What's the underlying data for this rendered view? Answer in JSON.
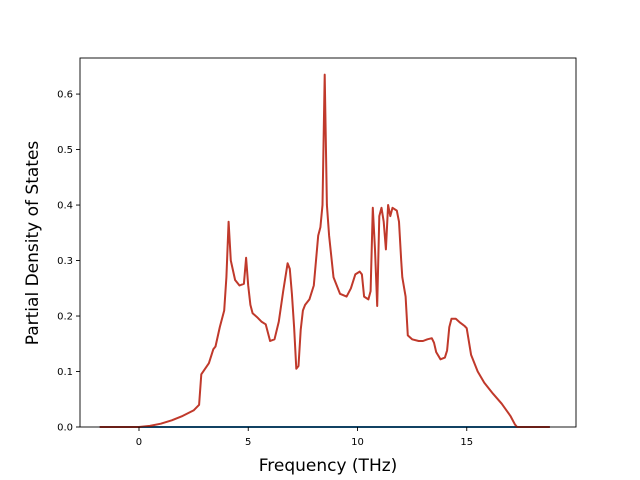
{
  "chart_data": {
    "type": "line",
    "title": "",
    "xlabel": "Frequency (THz)",
    "ylabel": "Partial Density of States",
    "xlim": [
      -2.7,
      20.0
    ],
    "ylim": [
      0.0,
      0.665
    ],
    "xticks": [
      0,
      5,
      10,
      15
    ],
    "yticks": [
      0.0,
      0.1,
      0.2,
      0.3,
      0.4,
      0.5,
      0.6
    ],
    "ytick_labels": [
      "0.0",
      "0.1",
      "0.2",
      "0.3",
      "0.4",
      "0.5",
      "0.6"
    ],
    "grid": false,
    "legend": "none",
    "series": [
      {
        "color": "#1f77b4",
        "x": [
          -1.8,
          18.8
        ],
        "y": [
          0.0,
          0.0
        ]
      },
      {
        "color": "#c0392b",
        "x": [
          -1.8,
          -0.5,
          0,
          0.5,
          1.0,
          1.5,
          2.0,
          2.5,
          2.75,
          2.85,
          3.2,
          3.4,
          3.5,
          3.7,
          3.9,
          4.0,
          4.1,
          4.2,
          4.4,
          4.6,
          4.8,
          4.9,
          5.0,
          5.1,
          5.2,
          5.4,
          5.6,
          5.8,
          6.0,
          6.2,
          6.4,
          6.6,
          6.8,
          6.9,
          7.0,
          7.1,
          7.2,
          7.3,
          7.4,
          7.5,
          7.6,
          7.8,
          8.0,
          8.2,
          8.3,
          8.4,
          8.5,
          8.6,
          8.7,
          8.9,
          9.2,
          9.5,
          9.7,
          9.9,
          10.1,
          10.2,
          10.3,
          10.5,
          10.6,
          10.7,
          10.8,
          10.9,
          11.0,
          11.1,
          11.2,
          11.3,
          11.4,
          11.5,
          11.6,
          11.8,
          11.9,
          12.0,
          12.05,
          12.2,
          12.3,
          12.5,
          12.8,
          13.0,
          13.2,
          13.4,
          13.5,
          13.6,
          13.8,
          14.0,
          14.1,
          14.2,
          14.3,
          14.5,
          14.7,
          14.8,
          14.9,
          15.0,
          15.2,
          15.5,
          15.8,
          16.2,
          16.6,
          17.0,
          17.2,
          17.3,
          17.5,
          18.8
        ],
        "y": [
          0.0,
          0.0,
          0.0,
          0.002,
          0.006,
          0.012,
          0.02,
          0.03,
          0.04,
          0.095,
          0.115,
          0.14,
          0.145,
          0.18,
          0.21,
          0.27,
          0.37,
          0.3,
          0.265,
          0.255,
          0.258,
          0.305,
          0.255,
          0.22,
          0.205,
          0.198,
          0.19,
          0.185,
          0.155,
          0.158,
          0.19,
          0.245,
          0.295,
          0.285,
          0.24,
          0.18,
          0.105,
          0.11,
          0.175,
          0.21,
          0.22,
          0.23,
          0.255,
          0.345,
          0.36,
          0.4,
          0.635,
          0.4,
          0.345,
          0.27,
          0.24,
          0.235,
          0.25,
          0.275,
          0.28,
          0.275,
          0.235,
          0.23,
          0.245,
          0.395,
          0.32,
          0.218,
          0.38,
          0.395,
          0.37,
          0.32,
          0.4,
          0.38,
          0.395,
          0.39,
          0.37,
          0.3,
          0.27,
          0.235,
          0.165,
          0.158,
          0.155,
          0.155,
          0.158,
          0.16,
          0.152,
          0.135,
          0.122,
          0.125,
          0.138,
          0.18,
          0.195,
          0.195,
          0.188,
          0.185,
          0.182,
          0.178,
          0.13,
          0.1,
          0.08,
          0.06,
          0.042,
          0.02,
          0.005,
          0.0,
          0.0,
          0.0
        ]
      }
    ]
  }
}
